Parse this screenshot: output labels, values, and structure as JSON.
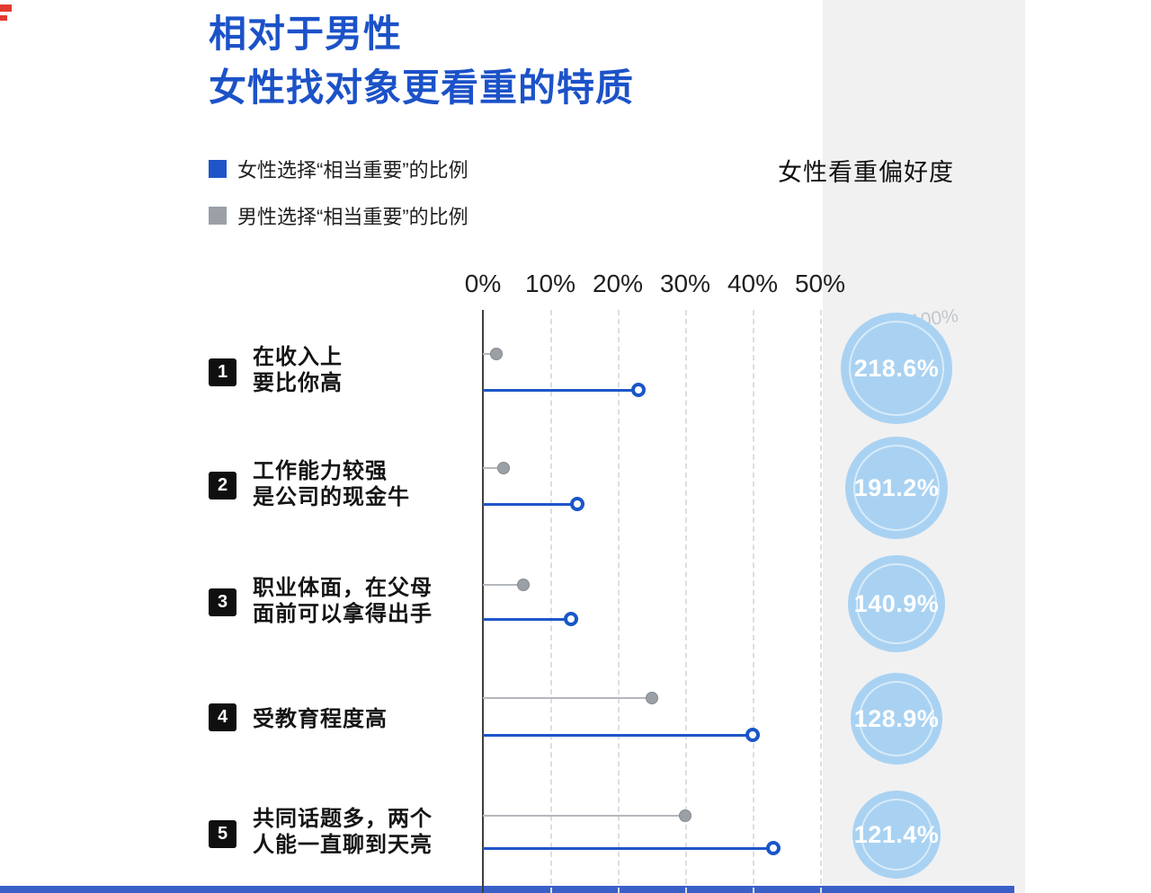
{
  "page": {
    "title_line1": "相对于男性",
    "title_line2": "女性找对象更看重的特质",
    "right_header": "女性看重偏好度",
    "multiplier_note": "×100%"
  },
  "legend": {
    "female_label": "女性选择“相当重要”的比例",
    "male_label": "男性选择“相当重要”的比例"
  },
  "colors": {
    "title_blue": "#1c52c8",
    "female_blue": "#1e56c8",
    "male_gray": "#9aa0a6",
    "circle_blue": "#a9d2f2",
    "panel_gray": "#f1f1f2",
    "accent_red": "#e23b30",
    "bottom_bar_blue": "#3a60c8"
  },
  "chart_data": {
    "type": "bar",
    "subtype": "horizontal-lollipop-dual-series",
    "x_ticks": [
      "0%",
      "10%",
      "20%",
      "30%",
      "40%",
      "50%"
    ],
    "x_range": [
      0,
      50
    ],
    "grid": "dashed-vertical",
    "row_numbers": [
      "1",
      "2",
      "3",
      "4",
      "5"
    ],
    "categories": [
      "在收入上要比你高",
      "工作能力较强 是公司的现金牛",
      "职业体面，在父母面前可以拿得出手",
      "受教育程度高",
      "共同话题多，两个人能一直聊到天亮"
    ],
    "category_lines": [
      [
        "在收入上",
        "要比你高"
      ],
      [
        "工作能力较强",
        "是公司的现金牛"
      ],
      [
        "职业体面，在父母",
        "面前可以拿得出手"
      ],
      [
        "受教育程度高"
      ],
      [
        "共同话题多，两个",
        "人能一直聊到天亮"
      ]
    ],
    "series": [
      {
        "name": "女性选择“相当重要”的比例",
        "color": "#1e56c8",
        "values": [
          23,
          14,
          13,
          40,
          43
        ]
      },
      {
        "name": "男性选择“相当重要”的比例",
        "color": "#9aa0a6",
        "values": [
          2,
          3,
          6,
          25,
          30
        ]
      }
    ],
    "preference_title": "女性看重偏好度",
    "preference_values": [
      "218.6%",
      "191.2%",
      "140.9%",
      "128.9%",
      "121.4%"
    ]
  }
}
